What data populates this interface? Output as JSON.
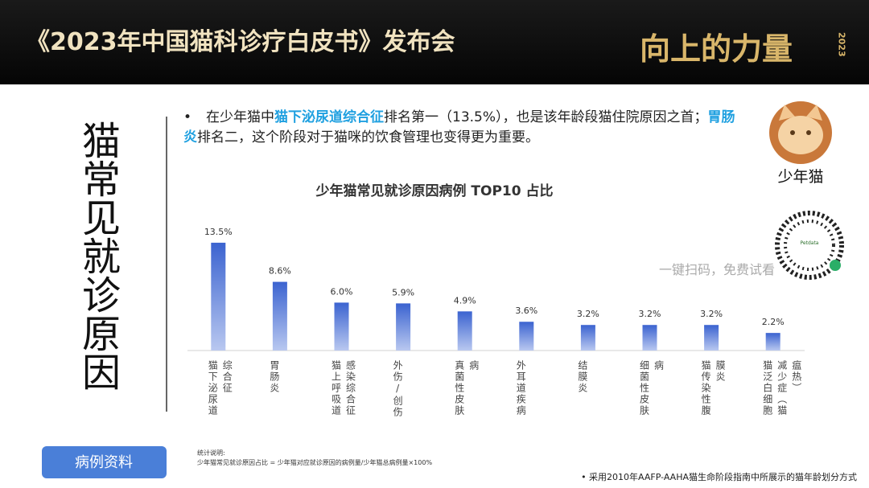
{
  "header": {
    "title": "《2023年中国猫科诊疗白皮书》发布会",
    "logo": "向上的力量",
    "logo_year": "2023"
  },
  "side_title": "猫常见就诊原因",
  "bullet": {
    "segments": [
      {
        "text": "在少年猫中",
        "highlight": false
      },
      {
        "text": "猫下泌尿道综合征",
        "highlight": true
      },
      {
        "text": "排名第一（13.5%），也是该年龄段猫住院原因之首；",
        "highlight": false
      },
      {
        "text": "胃肠炎",
        "highlight": true
      },
      {
        "text": "排名二，这个阶段对于猫咪的饮食管理也变得更为重要。",
        "highlight": false
      }
    ]
  },
  "avatar_label": "少年猫",
  "qr": {
    "label": "Petdata",
    "caption": "一键扫码，免费试看"
  },
  "button": "病例资料",
  "note": {
    "heading": "统计说明:",
    "text": "少年猫常见就诊原因占比 = 少年猫对应就诊原因的病例量/少年猫总病例量×100%"
  },
  "footer": "• 采用2010年AAFP-AAHA猫生命阶段指南中所展示的猫年龄划分方式",
  "chart_data": {
    "type": "bar",
    "title": "少年猫常见就诊原因病例 TOP10 占比",
    "categories": [
      "猫下泌尿道综合征",
      "胃肠炎",
      "猫上呼吸道感染综合征",
      "外伤/创伤",
      "真菌性皮肤病",
      "外耳道疾病",
      "结膜炎",
      "细菌性皮肤病",
      "猫传染性腹膜炎",
      "猫泛白细胞减少症（猫瘟热）"
    ],
    "values": [
      13.5,
      8.6,
      6.0,
      5.9,
      4.9,
      3.6,
      3.2,
      3.2,
      3.2,
      2.2
    ],
    "value_labels": [
      "13.5%",
      "8.6%",
      "6.0%",
      "5.9%",
      "4.9%",
      "3.6%",
      "3.2%",
      "3.2%",
      "3.2%",
      "2.2%"
    ],
    "color": "#3b63d0",
    "ylim": [
      0,
      15
    ],
    "grid": false
  }
}
